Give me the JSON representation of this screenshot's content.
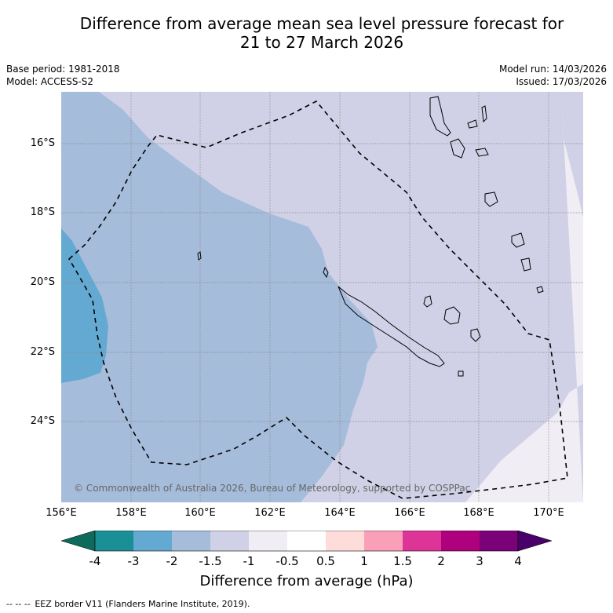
{
  "title_line1": "Difference from average mean sea level pressure forecast for",
  "title_line2": "21 to 27 March 2026",
  "meta_left": {
    "base_period": "Base period: 1981-2018",
    "model": "Model: ACCESS-S2"
  },
  "meta_right": {
    "model_run": "Model run: 14/03/2026",
    "issued": "Issued: 17/03/2026"
  },
  "latitude_labels": [
    "16°S",
    "18°S",
    "20°S",
    "22°S",
    "24°S"
  ],
  "longitude_labels": [
    "156°E",
    "158°E",
    "160°E",
    "162°E",
    "164°E",
    "166°E",
    "168°E",
    "170°E"
  ],
  "copyright": "© Commonwealth of Australia 2026, Bureau of Meteorology, supported by COSPPac",
  "colorbar": {
    "title": "Difference from average (hPa)",
    "tick_labels": [
      "-4",
      "-3",
      "-2",
      "-1.5",
      "-1",
      "-0.5",
      "0.5",
      "1",
      "1.5",
      "2",
      "3",
      "4"
    ],
    "colors": [
      "#0e6a5c",
      "#1a8f96",
      "#64a9d1",
      "#a6bcdb",
      "#d0d1e6",
      "#f1edf5",
      "#ffffff",
      "#fedcd9",
      "#f9a0b8",
      "#dd3497",
      "#ae017e",
      "#7a0177",
      "#49006a"
    ]
  },
  "legend": {
    "dash_symbol": "--  --  --",
    "text": "EEZ border V11 (Flanders Marine Institute, 2019)."
  },
  "colors": {
    "band_-3_-2": "#64a9d1",
    "band_-2_-1.5": "#a6bcdb",
    "band_-1.5_-1": "#d0d1e6",
    "band_-1_-0.5": "#f1edf5"
  }
}
